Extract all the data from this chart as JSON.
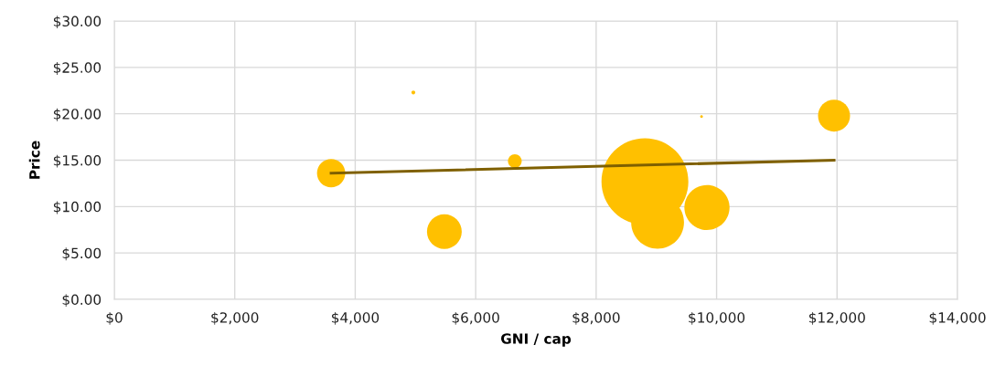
{
  "chart_data": {
    "type": "bubble",
    "xlabel": "GNI / cap",
    "ylabel": "Price",
    "x": [
      3600,
      4965,
      5480,
      6650,
      8810,
      9020,
      9840,
      9750,
      11950
    ],
    "series": [
      {
        "color": "#ffc000",
        "values": [
          13.6,
          22.3,
          7.3,
          14.9,
          12.7,
          8.3,
          9.9,
          19.7,
          19.8
        ],
        "sizes": [
          0.106,
          0.002,
          0.16,
          0.025,
          1,
          0.37,
          0.27,
          0.001,
          0.136
        ]
      },
      {
        "type": "line",
        "color": "#7f6000",
        "x": [
          3600,
          11950
        ],
        "values": [
          13.6,
          15.0
        ]
      }
    ],
    "xlim": [
      0,
      14000
    ],
    "ylim": [
      0,
      30
    ],
    "xticks": [
      {
        "value": 0,
        "label": "$0"
      },
      {
        "value": 2000,
        "label": "$2,000"
      },
      {
        "value": 4000,
        "label": "$4,000"
      },
      {
        "value": 6000,
        "label": "$6,000"
      },
      {
        "value": 8000,
        "label": "$8,000"
      },
      {
        "value": 10000,
        "label": "$10,000"
      },
      {
        "value": 12000,
        "label": "$12,000"
      },
      {
        "value": 14000,
        "label": "$14,000"
      }
    ],
    "yticks": [
      {
        "value": 0,
        "label": "$0.00"
      },
      {
        "value": 5,
        "label": "$5.00"
      },
      {
        "value": 10,
        "label": "$10.00"
      },
      {
        "value": 15,
        "label": "$15.00"
      },
      {
        "value": 20,
        "label": "$20.00"
      },
      {
        "value": 25,
        "label": "$25.00"
      },
      {
        "value": 30,
        "label": "$30.00"
      }
    ],
    "grid": true
  }
}
